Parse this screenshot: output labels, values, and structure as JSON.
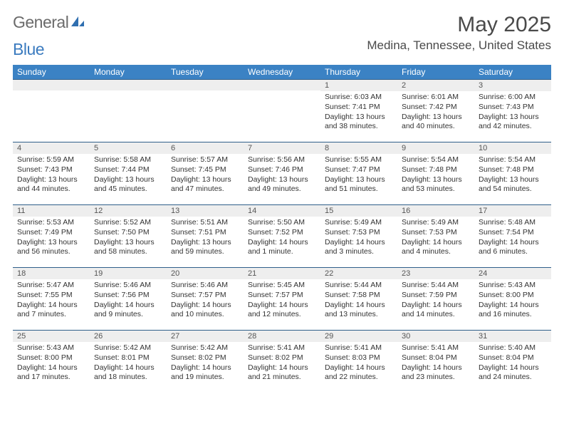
{
  "brand": {
    "part1": "General",
    "part2": "Blue"
  },
  "title": "May 2025",
  "location": "Medina, Tennessee, United States",
  "colors": {
    "header_bg": "#3b82c4",
    "header_text": "#ffffff",
    "rule": "#2f5f8a",
    "daynum_bg": "#eeeeee",
    "text": "#333333"
  },
  "dow": [
    "Sunday",
    "Monday",
    "Tuesday",
    "Wednesday",
    "Thursday",
    "Friday",
    "Saturday"
  ],
  "weeks": [
    [
      {
        "n": "",
        "sr": "",
        "ss": "",
        "dl": ""
      },
      {
        "n": "",
        "sr": "",
        "ss": "",
        "dl": ""
      },
      {
        "n": "",
        "sr": "",
        "ss": "",
        "dl": ""
      },
      {
        "n": "",
        "sr": "",
        "ss": "",
        "dl": ""
      },
      {
        "n": "1",
        "sr": "Sunrise: 6:03 AM",
        "ss": "Sunset: 7:41 PM",
        "dl": "Daylight: 13 hours and 38 minutes."
      },
      {
        "n": "2",
        "sr": "Sunrise: 6:01 AM",
        "ss": "Sunset: 7:42 PM",
        "dl": "Daylight: 13 hours and 40 minutes."
      },
      {
        "n": "3",
        "sr": "Sunrise: 6:00 AM",
        "ss": "Sunset: 7:43 PM",
        "dl": "Daylight: 13 hours and 42 minutes."
      }
    ],
    [
      {
        "n": "4",
        "sr": "Sunrise: 5:59 AM",
        "ss": "Sunset: 7:43 PM",
        "dl": "Daylight: 13 hours and 44 minutes."
      },
      {
        "n": "5",
        "sr": "Sunrise: 5:58 AM",
        "ss": "Sunset: 7:44 PM",
        "dl": "Daylight: 13 hours and 45 minutes."
      },
      {
        "n": "6",
        "sr": "Sunrise: 5:57 AM",
        "ss": "Sunset: 7:45 PM",
        "dl": "Daylight: 13 hours and 47 minutes."
      },
      {
        "n": "7",
        "sr": "Sunrise: 5:56 AM",
        "ss": "Sunset: 7:46 PM",
        "dl": "Daylight: 13 hours and 49 minutes."
      },
      {
        "n": "8",
        "sr": "Sunrise: 5:55 AM",
        "ss": "Sunset: 7:47 PM",
        "dl": "Daylight: 13 hours and 51 minutes."
      },
      {
        "n": "9",
        "sr": "Sunrise: 5:54 AM",
        "ss": "Sunset: 7:48 PM",
        "dl": "Daylight: 13 hours and 53 minutes."
      },
      {
        "n": "10",
        "sr": "Sunrise: 5:54 AM",
        "ss": "Sunset: 7:48 PM",
        "dl": "Daylight: 13 hours and 54 minutes."
      }
    ],
    [
      {
        "n": "11",
        "sr": "Sunrise: 5:53 AM",
        "ss": "Sunset: 7:49 PM",
        "dl": "Daylight: 13 hours and 56 minutes."
      },
      {
        "n": "12",
        "sr": "Sunrise: 5:52 AM",
        "ss": "Sunset: 7:50 PM",
        "dl": "Daylight: 13 hours and 58 minutes."
      },
      {
        "n": "13",
        "sr": "Sunrise: 5:51 AM",
        "ss": "Sunset: 7:51 PM",
        "dl": "Daylight: 13 hours and 59 minutes."
      },
      {
        "n": "14",
        "sr": "Sunrise: 5:50 AM",
        "ss": "Sunset: 7:52 PM",
        "dl": "Daylight: 14 hours and 1 minute."
      },
      {
        "n": "15",
        "sr": "Sunrise: 5:49 AM",
        "ss": "Sunset: 7:53 PM",
        "dl": "Daylight: 14 hours and 3 minutes."
      },
      {
        "n": "16",
        "sr": "Sunrise: 5:49 AM",
        "ss": "Sunset: 7:53 PM",
        "dl": "Daylight: 14 hours and 4 minutes."
      },
      {
        "n": "17",
        "sr": "Sunrise: 5:48 AM",
        "ss": "Sunset: 7:54 PM",
        "dl": "Daylight: 14 hours and 6 minutes."
      }
    ],
    [
      {
        "n": "18",
        "sr": "Sunrise: 5:47 AM",
        "ss": "Sunset: 7:55 PM",
        "dl": "Daylight: 14 hours and 7 minutes."
      },
      {
        "n": "19",
        "sr": "Sunrise: 5:46 AM",
        "ss": "Sunset: 7:56 PM",
        "dl": "Daylight: 14 hours and 9 minutes."
      },
      {
        "n": "20",
        "sr": "Sunrise: 5:46 AM",
        "ss": "Sunset: 7:57 PM",
        "dl": "Daylight: 14 hours and 10 minutes."
      },
      {
        "n": "21",
        "sr": "Sunrise: 5:45 AM",
        "ss": "Sunset: 7:57 PM",
        "dl": "Daylight: 14 hours and 12 minutes."
      },
      {
        "n": "22",
        "sr": "Sunrise: 5:44 AM",
        "ss": "Sunset: 7:58 PM",
        "dl": "Daylight: 14 hours and 13 minutes."
      },
      {
        "n": "23",
        "sr": "Sunrise: 5:44 AM",
        "ss": "Sunset: 7:59 PM",
        "dl": "Daylight: 14 hours and 14 minutes."
      },
      {
        "n": "24",
        "sr": "Sunrise: 5:43 AM",
        "ss": "Sunset: 8:00 PM",
        "dl": "Daylight: 14 hours and 16 minutes."
      }
    ],
    [
      {
        "n": "25",
        "sr": "Sunrise: 5:43 AM",
        "ss": "Sunset: 8:00 PM",
        "dl": "Daylight: 14 hours and 17 minutes."
      },
      {
        "n": "26",
        "sr": "Sunrise: 5:42 AM",
        "ss": "Sunset: 8:01 PM",
        "dl": "Daylight: 14 hours and 18 minutes."
      },
      {
        "n": "27",
        "sr": "Sunrise: 5:42 AM",
        "ss": "Sunset: 8:02 PM",
        "dl": "Daylight: 14 hours and 19 minutes."
      },
      {
        "n": "28",
        "sr": "Sunrise: 5:41 AM",
        "ss": "Sunset: 8:02 PM",
        "dl": "Daylight: 14 hours and 21 minutes."
      },
      {
        "n": "29",
        "sr": "Sunrise: 5:41 AM",
        "ss": "Sunset: 8:03 PM",
        "dl": "Daylight: 14 hours and 22 minutes."
      },
      {
        "n": "30",
        "sr": "Sunrise: 5:41 AM",
        "ss": "Sunset: 8:04 PM",
        "dl": "Daylight: 14 hours and 23 minutes."
      },
      {
        "n": "31",
        "sr": "Sunrise: 5:40 AM",
        "ss": "Sunset: 8:04 PM",
        "dl": "Daylight: 14 hours and 24 minutes."
      }
    ]
  ]
}
